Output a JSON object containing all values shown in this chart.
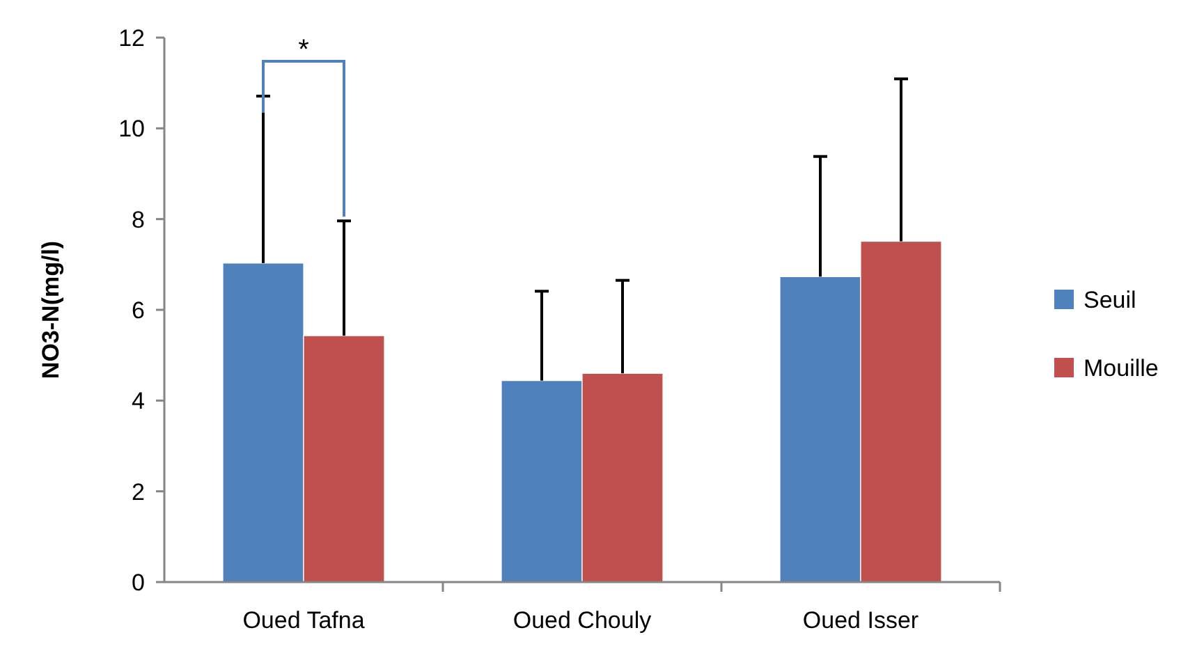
{
  "chart_data": {
    "type": "bar",
    "ylabel": "NO3-N(mg/l)",
    "categories": [
      "Oued Tafna",
      "Oued Chouly",
      "Oued Isser"
    ],
    "series": [
      {
        "name": "Seuil",
        "color": "#4f81bd",
        "values": [
          7.03,
          4.44,
          6.73
        ],
        "errors": [
          [
            7.03,
            10.71
          ],
          [
            4.44,
            6.41
          ],
          [
            6.73,
            9.38
          ]
        ]
      },
      {
        "name": "Mouille",
        "color": "#c0504d",
        "values": [
          5.43,
          4.6,
          7.51
        ],
        "errors": [
          [
            5.43,
            7.96
          ],
          [
            4.6,
            6.65
          ],
          [
            7.51,
            11.09
          ]
        ]
      }
    ],
    "ylim": [
      0,
      12
    ],
    "yticks": [
      0,
      2,
      4,
      6,
      8,
      10,
      12
    ],
    "grid": false,
    "legend": "right",
    "annotations": [
      "*"
    ]
  }
}
